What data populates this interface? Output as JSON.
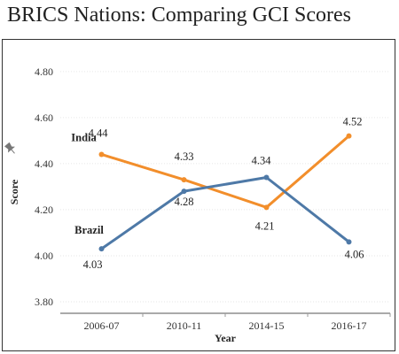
{
  "title": "BRICS Nations: Comparing GCI Scores",
  "chart_data": {
    "type": "line",
    "title": "BRICS Nations: Comparing GCI Scores",
    "categories": [
      "2006-07",
      "2010-11",
      "2014-15",
      "2016-17"
    ],
    "xlabel": "Year",
    "ylabel": "Score",
    "ylim": [
      3.75,
      4.88
    ],
    "yticks": [
      "4.80",
      "4.60",
      "4.40",
      "4.20",
      "4.00",
      "3.80"
    ],
    "grid": true,
    "series": [
      {
        "name": "India",
        "color": "#f28e2b",
        "values": [
          4.44,
          4.33,
          4.21,
          4.52
        ],
        "labels": [
          "4.44",
          "4.33",
          "4.21",
          "4.52"
        ]
      },
      {
        "name": "Brazil",
        "color": "#4e79a7",
        "values": [
          4.03,
          4.28,
          4.34,
          4.06
        ],
        "labels": [
          "4.03",
          "4.28",
          "4.34",
          "4.06"
        ]
      }
    ]
  }
}
